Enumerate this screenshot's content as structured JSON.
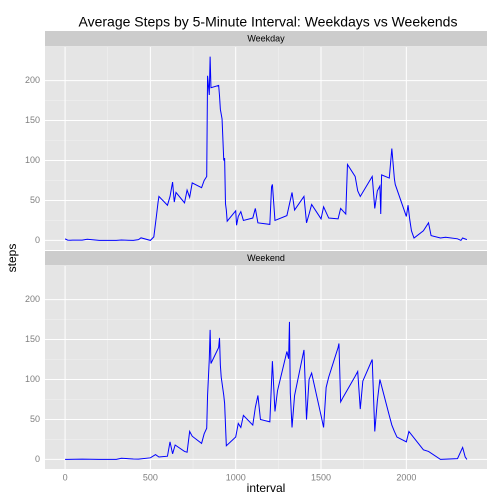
{
  "title": "Average Steps by 5-Minute Interval: Weekdays vs Weekends",
  "x_label": "interval",
  "y_label": "steps",
  "chart_data": [
    {
      "type": "line",
      "title": "Weekday",
      "color": "#0000ff",
      "grid": true,
      "x": [
        0,
        15,
        30,
        45,
        100,
        130,
        200,
        230,
        300,
        330,
        400,
        430,
        445,
        500,
        520,
        535,
        545,
        550,
        600,
        615,
        630,
        640,
        650,
        700,
        715,
        730,
        745,
        800,
        815,
        830,
        835,
        845,
        850,
        855,
        900,
        905,
        910,
        920,
        930,
        935,
        940,
        945,
        950,
        1000,
        1005,
        1015,
        1030,
        1045,
        1100,
        1115,
        1130,
        1200,
        1210,
        1215,
        1230,
        1300,
        1330,
        1345,
        1400,
        1415,
        1430,
        1445,
        1500,
        1515,
        1545,
        1600,
        1615,
        1645,
        1655,
        1700,
        1715,
        1730,
        1800,
        1815,
        1830,
        1845,
        1850,
        1855,
        1900,
        1915,
        1930,
        1935,
        2000,
        2010,
        2020,
        2030,
        2045,
        2100,
        2130,
        2145,
        2200,
        2230,
        2300,
        2320,
        2330,
        2355
      ],
      "values": [
        1.9,
        0.4,
        0.2,
        0.3,
        0.4,
        1.5,
        0,
        0,
        0,
        0.5,
        0,
        1,
        3.2,
        0,
        4.4,
        30,
        48,
        55,
        44,
        55,
        73,
        48,
        60,
        47,
        63,
        54,
        72,
        66,
        75,
        80,
        206,
        182,
        230,
        191,
        194,
        181,
        164,
        152,
        100,
        103,
        46,
        38,
        24,
        37,
        19,
        30,
        36,
        25,
        28,
        40,
        22,
        20,
        67,
        70,
        25,
        31,
        60,
        38,
        55,
        22,
        33,
        45,
        27,
        42,
        28,
        27,
        40,
        33,
        95,
        80,
        62,
        55,
        80,
        40,
        62,
        68,
        33,
        82,
        78,
        115,
        77,
        70,
        30,
        44,
        26,
        12,
        3,
        12,
        22,
        6,
        3,
        4,
        2,
        0,
        3,
        1
      ],
      "xlim": [
        -117.75,
        2472.75
      ],
      "ylim": [
        -12,
        242
      ],
      "xticks": [
        0,
        500,
        1000,
        1500,
        2000
      ],
      "yticks": [
        0,
        50,
        100,
        150,
        200
      ]
    },
    {
      "type": "line",
      "title": "Weekend",
      "color": "#0000ff",
      "grid": true,
      "x": [
        0,
        15,
        100,
        200,
        300,
        330,
        400,
        430,
        500,
        530,
        550,
        600,
        615,
        630,
        645,
        700,
        715,
        730,
        745,
        800,
        815,
        830,
        835,
        845,
        850,
        855,
        900,
        905,
        910,
        915,
        930,
        935,
        945,
        1000,
        1015,
        1030,
        1045,
        1100,
        1115,
        1130,
        1145,
        1200,
        1215,
        1230,
        1245,
        1300,
        1310,
        1315,
        1320,
        1330,
        1345,
        1400,
        1415,
        1430,
        1445,
        1500,
        1515,
        1530,
        1545,
        1600,
        1605,
        1615,
        1630,
        1700,
        1715,
        1730,
        1745,
        1800,
        1815,
        1830,
        1845,
        1900,
        1915,
        1930,
        1945,
        2000,
        2015,
        2100,
        2130,
        2200,
        2300,
        2330,
        2345,
        2355
      ],
      "values": [
        0,
        0.1,
        0.4,
        0,
        0,
        1.5,
        0.5,
        0.4,
        2,
        6,
        3,
        4,
        22,
        7,
        18,
        10,
        9,
        35,
        29,
        20,
        32,
        39,
        80,
        125,
        162,
        120,
        140,
        152,
        118,
        103,
        80,
        70,
        17,
        28,
        45,
        40,
        55,
        43,
        65,
        80,
        50,
        47,
        123,
        60,
        86,
        135,
        126,
        172,
        83,
        40,
        80,
        137,
        50,
        100,
        108,
        55,
        40,
        90,
        103,
        140,
        145,
        72,
        78,
        104,
        110,
        63,
        98,
        125,
        35,
        73,
        100,
        55,
        43,
        35,
        28,
        22,
        35,
        12,
        10,
        0,
        1,
        15,
        3,
        0
      ],
      "xlim": [
        -117.75,
        2472.75
      ],
      "ylim": [
        -12,
        242
      ],
      "xticks": [
        0,
        500,
        1000,
        1500,
        2000
      ],
      "yticks": [
        0,
        50,
        100,
        150,
        200
      ]
    }
  ]
}
